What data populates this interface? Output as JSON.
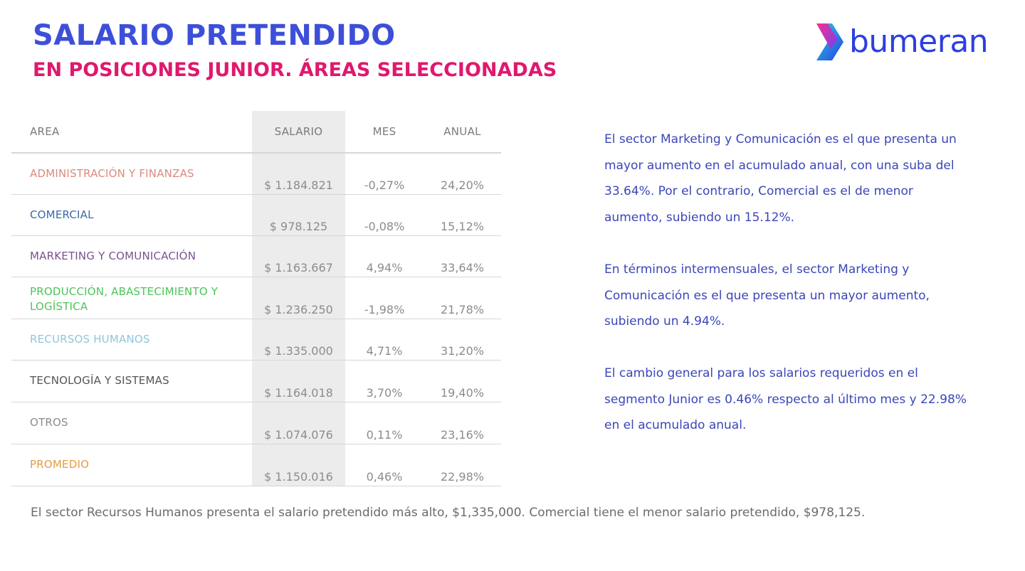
{
  "header": {
    "title": "SALARIO PRETENDIDO",
    "subtitle": "EN POSICIONES JUNIOR. ÁREAS SELECCIONADAS"
  },
  "logo": {
    "text": "bumeran",
    "icon": "bumeran-chevron-logo-icon"
  },
  "colors": {
    "title": "#3d4fd9",
    "subtitle": "#e0186e",
    "paragraph": "#3b46b8",
    "salary_band": "#ececec"
  },
  "table": {
    "headers": {
      "area": "AREA",
      "salario": "SALARIO",
      "mes": "MES",
      "anual": "ANUAL"
    },
    "rows": [
      {
        "area": "ADMINISTRACIÓN Y FINANZAS",
        "salario": "$ 1.184.821",
        "mes": "-0,27%",
        "anual": "24,20%",
        "color": "#d98b80"
      },
      {
        "area": "COMERCIAL",
        "salario": "$ 978.125",
        "mes": "-0,08%",
        "anual": "15,12%",
        "color": "#3a6aa8"
      },
      {
        "area": "MARKETING Y COMUNICACIÓN",
        "salario": "$ 1.163.667",
        "mes": "4,94%",
        "anual": "33,64%",
        "color": "#7a5290"
      },
      {
        "area": "PRODUCCIÓN, ABASTECIMIENTO Y LOGÍSTICA",
        "salario": "$ 1.236.250",
        "mes": "-1,98%",
        "anual": "21,78%",
        "color": "#4cc45a"
      },
      {
        "area": "RECURSOS HUMANOS",
        "salario": "$ 1.335.000",
        "mes": "4,71%",
        "anual": "31,20%",
        "color": "#8fc6dc"
      },
      {
        "area": "TECNOLOGÍA Y SISTEMAS",
        "salario": "$ 1.164.018",
        "mes": "3,70%",
        "anual": "19,40%",
        "color": "#555555"
      },
      {
        "area": "OTROS",
        "salario": "$ 1.074.076",
        "mes": "0,11%",
        "anual": "23,16%",
        "color": "#8c8c8c"
      },
      {
        "area": "PROMEDIO",
        "salario": "$ 1.150.016",
        "mes": "0,46%",
        "anual": "22,98%",
        "color": "#e79a3d"
      }
    ]
  },
  "paragraphs": [
    "El sector Marketing y Comunicación es el que presenta un mayor aumento en el acumulado anual, con una suba del 33.64%. Por el contrario, Comercial es el de menor aumento, subiendo un 15.12%.",
    "En términos intermensuales, el sector Marketing y Comunicación es el que presenta un mayor aumento, subiendo un 4.94%.",
    "El cambio general para los salarios requeridos en el segmento Junior es 0.46% respecto al último mes y 22.98% en el acumulado anual."
  ],
  "footer": "El sector Recursos Humanos presenta el salario pretendido más alto, $1,335,000. Comercial tiene el menor salario pretendido, $978,125."
}
